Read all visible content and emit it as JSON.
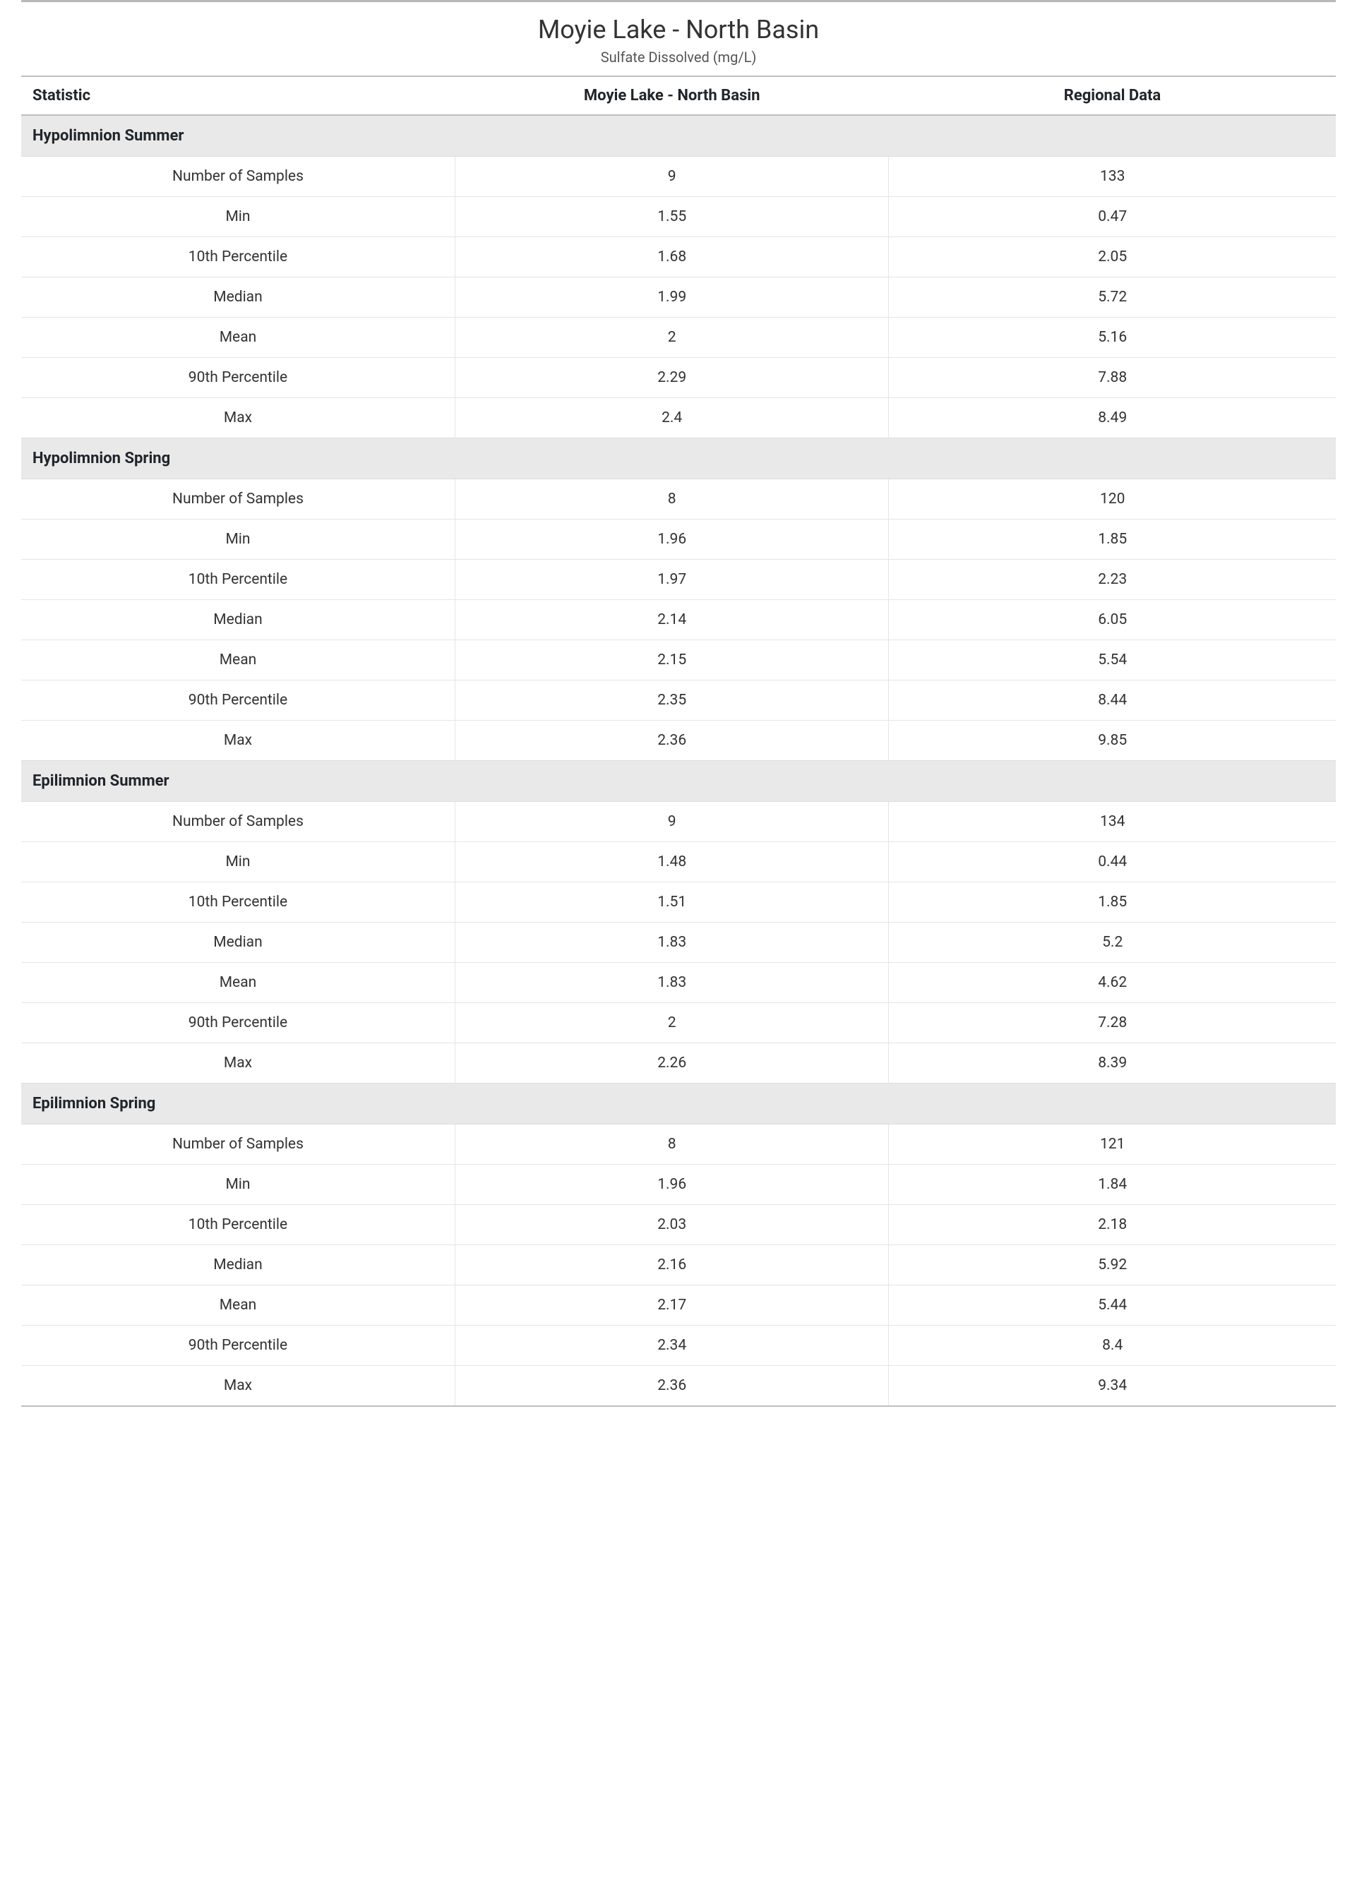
{
  "header": {
    "title": "Moyie Lake - North Basin",
    "subtitle": "Sulfate Dissolved (mg/L)"
  },
  "table": {
    "columns": [
      "Statistic",
      "Moyie Lake - North Basin",
      "Regional Data"
    ],
    "sections": [
      {
        "name": "Hypolimnion Summer",
        "rows": [
          [
            "Number of Samples",
            "9",
            "133"
          ],
          [
            "Min",
            "1.55",
            "0.47"
          ],
          [
            "10th Percentile",
            "1.68",
            "2.05"
          ],
          [
            "Median",
            "1.99",
            "5.72"
          ],
          [
            "Mean",
            "2",
            "5.16"
          ],
          [
            "90th Percentile",
            "2.29",
            "7.88"
          ],
          [
            "Max",
            "2.4",
            "8.49"
          ]
        ]
      },
      {
        "name": "Hypolimnion Spring",
        "rows": [
          [
            "Number of Samples",
            "8",
            "120"
          ],
          [
            "Min",
            "1.96",
            "1.85"
          ],
          [
            "10th Percentile",
            "1.97",
            "2.23"
          ],
          [
            "Median",
            "2.14",
            "6.05"
          ],
          [
            "Mean",
            "2.15",
            "5.54"
          ],
          [
            "90th Percentile",
            "2.35",
            "8.44"
          ],
          [
            "Max",
            "2.36",
            "9.85"
          ]
        ]
      },
      {
        "name": "Epilimnion Summer",
        "rows": [
          [
            "Number of Samples",
            "9",
            "134"
          ],
          [
            "Min",
            "1.48",
            "0.44"
          ],
          [
            "10th Percentile",
            "1.51",
            "1.85"
          ],
          [
            "Median",
            "1.83",
            "5.2"
          ],
          [
            "Mean",
            "1.83",
            "4.62"
          ],
          [
            "90th Percentile",
            "2",
            "7.28"
          ],
          [
            "Max",
            "2.26",
            "8.39"
          ]
        ]
      },
      {
        "name": "Epilimnion Spring",
        "rows": [
          [
            "Number of Samples",
            "8",
            "121"
          ],
          [
            "Min",
            "1.96",
            "1.84"
          ],
          [
            "10th Percentile",
            "2.03",
            "2.18"
          ],
          [
            "Median",
            "2.16",
            "5.92"
          ],
          [
            "Mean",
            "2.17",
            "5.44"
          ],
          [
            "90th Percentile",
            "2.34",
            "8.4"
          ],
          [
            "Max",
            "2.36",
            "9.34"
          ]
        ]
      }
    ]
  },
  "styles": {
    "background_color": "#ffffff",
    "section_bg": "#e9e9e9",
    "border_color": "#e5e5e5",
    "header_border": "#bfbfbf",
    "top_rule": "#b8b8b8",
    "title_fontsize": 36,
    "subtitle_fontsize": 20,
    "body_fontsize": 21,
    "font_family": "Segoe UI"
  }
}
